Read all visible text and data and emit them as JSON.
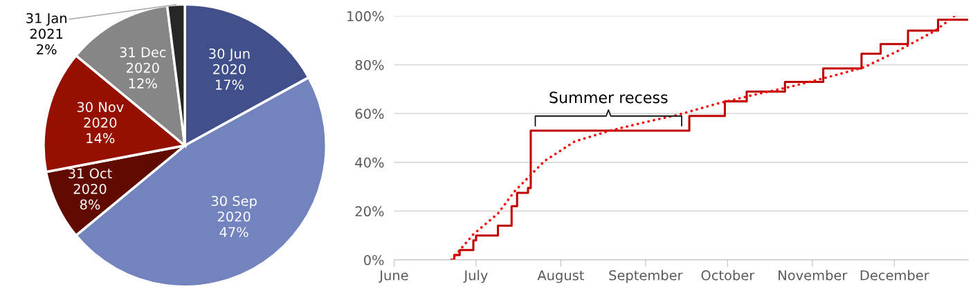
{
  "chart_data": [
    {
      "type": "pie",
      "categories": [
        "30 Jun 2020",
        "30 Sep 2020",
        "31 Oct 2020",
        "30 Nov 2020",
        "31 Dec 2020",
        "31 Jan 2021"
      ],
      "values": [
        17,
        47,
        8,
        14,
        12,
        2
      ],
      "colors": [
        "#41508a",
        "#7383bd",
        "#600a00",
        "#961000",
        "#868686",
        "#262626"
      ],
      "value_labels": [
        "17%",
        "47%",
        "8%",
        "14%",
        "12%",
        "2%"
      ]
    },
    {
      "type": "step",
      "xlim": [
        "2020-06-01",
        "2020-12-28"
      ],
      "ylim": [
        0,
        100
      ],
      "xticks": [
        {
          "value": "2020-06-01",
          "label": "June"
        },
        {
          "value": "2020-07-01",
          "label": "July"
        },
        {
          "value": "2020-08-01",
          "label": "August"
        },
        {
          "value": "2020-09-01",
          "label": "September"
        },
        {
          "value": "2020-10-01",
          "label": "October"
        },
        {
          "value": "2020-11-01",
          "label": "November"
        },
        {
          "value": "2020-12-01",
          "label": "December"
        }
      ],
      "yticks": [
        {
          "value": 0,
          "label": "0%"
        },
        {
          "value": 20,
          "label": "20%"
        },
        {
          "value": 40,
          "label": "40%"
        },
        {
          "value": 60,
          "label": "60%"
        },
        {
          "value": 80,
          "label": "80%"
        },
        {
          "value": 100,
          "label": "100%"
        }
      ],
      "grid": "y",
      "series": [
        {
          "type": "step",
          "color": "#c00000",
          "line_style": "solid",
          "x": [
            "2020-06-22",
            "2020-06-23",
            "2020-06-25",
            "2020-06-30",
            "2020-07-01",
            "2020-07-09",
            "2020-07-14",
            "2020-07-16",
            "2020-07-20",
            "2020-07-21",
            "2020-09-17",
            "2020-09-30",
            "2020-10-08",
            "2020-10-22",
            "2020-11-05",
            "2020-11-19",
            "2020-11-26",
            "2020-12-06",
            "2020-12-17",
            "2020-12-28"
          ],
          "values": [
            0,
            2,
            4,
            8,
            10,
            14,
            22,
            27.5,
            29.5,
            53,
            59,
            65,
            69,
            73,
            78.5,
            84.5,
            88.5,
            94,
            98.5,
            98.5
          ]
        },
        {
          "type": "line",
          "color": "#ff0000",
          "line_style": "dotted",
          "x": [
            "2020-06-22",
            "2020-06-30",
            "2020-07-09",
            "2020-07-15",
            "2020-07-26",
            "2020-08-06",
            "2020-08-19",
            "2020-09-01",
            "2020-09-13",
            "2020-09-27",
            "2020-10-10",
            "2020-10-24",
            "2020-11-07",
            "2020-11-20",
            "2020-12-02",
            "2020-12-16",
            "2020-12-23"
          ],
          "values": [
            0,
            10.5,
            19,
            28,
            40.5,
            48.5,
            53,
            56.5,
            59.5,
            64,
            67.5,
            71,
            75,
            79,
            85.5,
            94,
            100
          ]
        }
      ],
      "annotations": [
        "Summer recess"
      ]
    }
  ]
}
